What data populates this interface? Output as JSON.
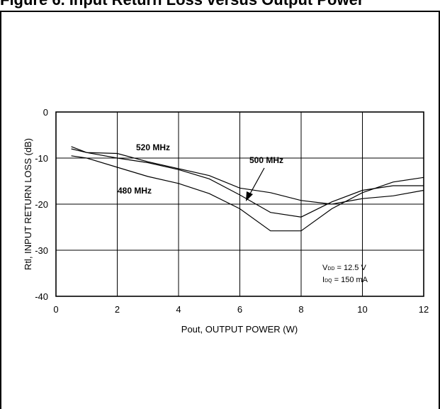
{
  "chart_data": {
    "type": "line",
    "xlabel": "Pout, OUTPUT POWER (W)",
    "ylabel": "Rtl, INPUT RETURN LOSS (dB)",
    "xlim": [
      0,
      12
    ],
    "ylim": [
      -40,
      0
    ],
    "x_ticks": [
      "0",
      "2",
      "4",
      "6",
      "8",
      "10",
      "12"
    ],
    "y_ticks": [
      "0",
      "-10",
      "-20",
      "-30",
      "-40"
    ],
    "grid": true,
    "series": [
      {
        "name": "520 MHz",
        "x": [
          0.5,
          1,
          2,
          3,
          4,
          5,
          6,
          7,
          8,
          9,
          10,
          11,
          12
        ],
        "y": [
          -9.5,
          -10,
          -12,
          -14,
          -15.5,
          -17.7,
          -21,
          -25.8,
          -25.8,
          -21,
          -17.5,
          -15.2,
          -14.2
        ]
      },
      {
        "name": "500 MHz",
        "x": [
          0.5,
          1,
          2,
          3,
          4,
          5,
          6,
          7,
          8,
          9,
          10,
          11,
          12
        ],
        "y": [
          -8,
          -8.8,
          -10,
          -11,
          -12.5,
          -14.5,
          -18,
          -21.8,
          -22.8,
          -19.5,
          -17,
          -16,
          -16
        ]
      },
      {
        "name": "480 MHz",
        "x": [
          0.5,
          1,
          2,
          3,
          4,
          5,
          6,
          7,
          8,
          9,
          10,
          11,
          12
        ],
        "y": [
          -7.5,
          -8.8,
          -9,
          -10.8,
          -12.3,
          -13.8,
          -16.5,
          -17.5,
          -19.2,
          -20,
          -18.8,
          -18.2,
          -17
        ]
      }
    ],
    "annotations": {
      "vdd": {
        "main": "V",
        "sub": "DD",
        "rest": " = 12.5 V"
      },
      "idq": {
        "main": "I",
        "sub": "DQ",
        "rest": " = 150 mA"
      }
    }
  },
  "caption": "Figure 6. Input Return Loss versus Output Power"
}
